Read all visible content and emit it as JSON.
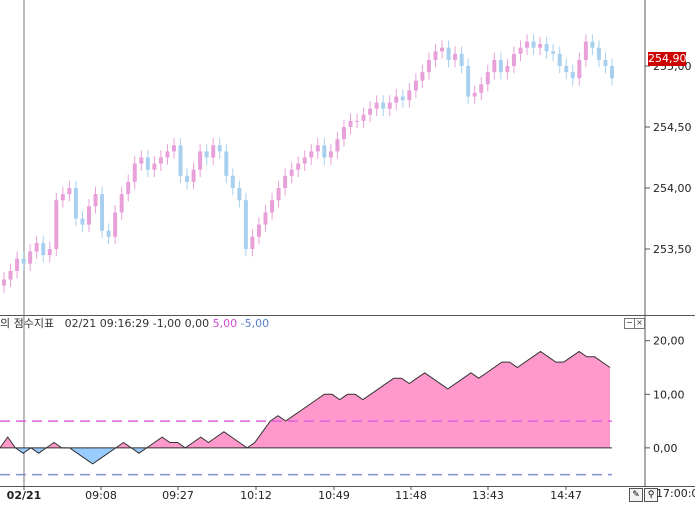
{
  "price_axis": {
    "labels": [
      "255,00",
      "254,50",
      "254,00",
      "253,50"
    ],
    "values": [
      255.0,
      254.5,
      254.0,
      253.5
    ],
    "current_price_label": "254,90",
    "current_price": 254.9
  },
  "indicator": {
    "title": "의 점수지표",
    "timestamp": "02/21 09:16:29",
    "values_plain": "-1,00 0,00",
    "upper_label": "5,00",
    "lower_label": "-5,00",
    "axis_labels": [
      "20,00",
      "10,00",
      "0,00"
    ],
    "axis_values": [
      20,
      10,
      0
    ],
    "upper_level": 5,
    "lower_level": -5,
    "up_color": "#ff99cc",
    "down_color": "#99ccff"
  },
  "time_axis": {
    "labels": [
      "02/21",
      "09:08",
      "09:27",
      "10:12",
      "10:49",
      "11:48",
      "13:43",
      "14:47"
    ],
    "tail_label": "17:00:0"
  },
  "toolbar": {
    "minimize_glyph": "−",
    "close_glyph": "×",
    "pencil_icon": "✎",
    "zoom_icon": "🔍"
  },
  "chart_data": [
    {
      "type": "candlestick",
      "ylim": [
        253.0,
        255.5
      ],
      "up_color": "#e8a0d8",
      "down_color": "#a8d0ee",
      "closes": [
        253.25,
        253.32,
        253.42,
        253.38,
        253.48,
        253.55,
        253.45,
        253.5,
        253.9,
        253.95,
        254.0,
        253.75,
        253.7,
        253.85,
        253.95,
        253.65,
        253.6,
        253.8,
        253.95,
        254.05,
        254.2,
        254.25,
        254.15,
        254.2,
        254.25,
        254.3,
        254.35,
        254.1,
        254.05,
        254.15,
        254.3,
        254.25,
        254.35,
        254.3,
        254.1,
        254.0,
        253.9,
        253.5,
        253.6,
        253.7,
        253.8,
        253.9,
        254.0,
        254.1,
        254.15,
        254.2,
        254.25,
        254.3,
        254.35,
        254.25,
        254.3,
        254.4,
        254.5,
        254.55,
        254.55,
        254.6,
        254.65,
        254.7,
        254.65,
        254.7,
        254.75,
        254.72,
        254.8,
        254.88,
        254.95,
        255.05,
        255.12,
        255.15,
        255.05,
        255.1,
        255.0,
        254.75,
        254.78,
        254.85,
        254.95,
        255.05,
        254.95,
        255.0,
        255.1,
        255.15,
        255.2,
        255.15,
        255.18,
        255.12,
        255.1,
        255.0,
        254.95,
        254.9,
        255.05,
        255.2,
        255.15,
        255.05,
        255.0,
        254.9
      ],
      "series_note_label": ""
    },
    {
      "type": "area",
      "ylim": [
        -6,
        22
      ],
      "values": [
        0,
        2,
        0,
        -1,
        0,
        -1,
        0,
        1,
        0,
        0,
        -1,
        -2,
        -3,
        -2,
        -1,
        0,
        1,
        0,
        -1,
        0,
        1,
        2,
        1,
        1,
        0,
        1,
        2,
        1,
        2,
        3,
        2,
        1,
        0,
        1,
        3,
        5,
        6,
        5,
        6,
        7,
        8,
        9,
        10,
        10,
        9,
        10,
        10,
        9,
        10,
        11,
        12,
        13,
        13,
        12,
        13,
        14,
        13,
        12,
        11,
        12,
        13,
        14,
        13,
        14,
        15,
        16,
        16,
        15,
        16,
        17,
        18,
        17,
        16,
        16,
        17,
        18,
        17,
        17,
        16,
        15
      ],
      "upper_level": 5,
      "lower_level": -5
    }
  ]
}
